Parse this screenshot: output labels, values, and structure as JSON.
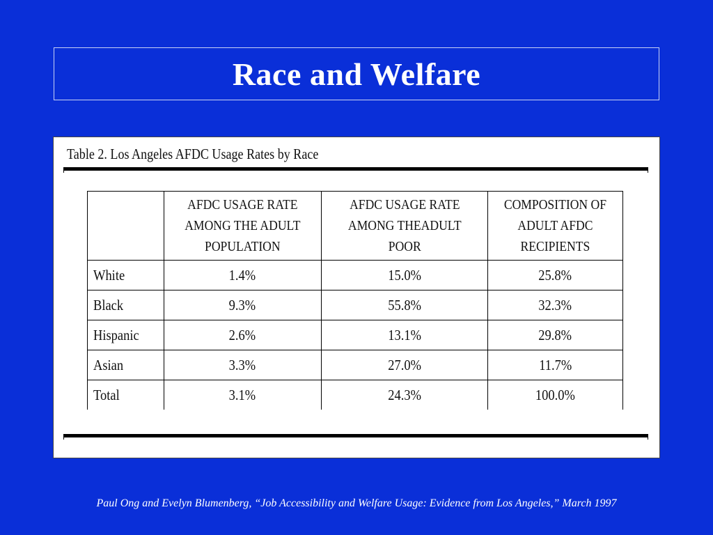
{
  "slide": {
    "title": "Race and Welfare",
    "background_color": "#0a2fd8"
  },
  "table": {
    "caption": "Table 2.  Los Angeles AFDC Usage Rates by Race",
    "headers": [
      "",
      "AFDC USAGE RATE AMONG THE ADULT POPULATION",
      "AFDC USAGE RATE AMONG THEADULT POOR",
      "COMPOSITION OF ADULT AFDC RECIPIENTS"
    ],
    "rows": [
      {
        "race": "White",
        "adult_rate": "1.4%",
        "poor_rate": "15.0%",
        "composition": "25.8%"
      },
      {
        "race": "Black",
        "adult_rate": "9.3%",
        "poor_rate": "55.8%",
        "composition": "32.3%"
      },
      {
        "race": "Hispanic",
        "adult_rate": "2.6%",
        "poor_rate": "13.1%",
        "composition": "29.8%"
      },
      {
        "race": "Asian",
        "adult_rate": "3.3%",
        "poor_rate": "27.0%",
        "composition": "11.7%"
      },
      {
        "race": "Total",
        "adult_rate": "3.1%",
        "poor_rate": "24.3%",
        "composition": "100.0%"
      }
    ]
  },
  "citation": "Paul Ong and Evelyn Blumenberg, “Job Accessibility and Welfare Usage: Evidence from Los Angeles,” March 1997"
}
